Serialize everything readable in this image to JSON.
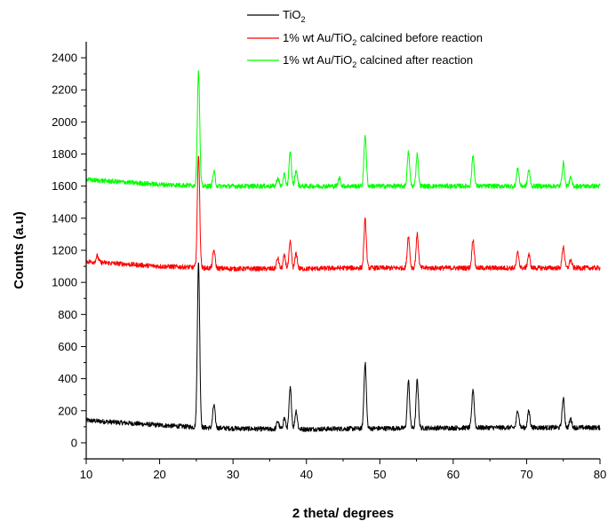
{
  "chart_data": {
    "type": "line",
    "xlabel": "2 theta/ degrees",
    "ylabel": "Counts (a.u)",
    "xlim": [
      10,
      80
    ],
    "ylim": [
      -100,
      2500
    ],
    "xticks": [
      10,
      20,
      30,
      40,
      50,
      60,
      70,
      80
    ],
    "yticks": [
      0,
      200,
      400,
      600,
      800,
      1000,
      1200,
      1400,
      1600,
      1800,
      2000,
      2200,
      2400
    ],
    "grid": false,
    "legend_position": "top-center",
    "series": [
      {
        "name": "TiO2",
        "legend": {
          "pre": "TiO",
          "sub": "2",
          "post": ""
        },
        "color": "#000000",
        "baseline": [
          [
            10,
            140
          ],
          [
            15,
            125
          ],
          [
            20,
            110
          ],
          [
            24,
            100
          ],
          [
            26,
            95
          ],
          [
            30,
            90
          ],
          [
            35,
            85
          ],
          [
            40,
            85
          ],
          [
            45,
            88
          ],
          [
            50,
            90
          ],
          [
            55,
            92
          ],
          [
            60,
            93
          ],
          [
            65,
            95
          ],
          [
            70,
            95
          ],
          [
            75,
            95
          ],
          [
            80,
            95
          ]
        ],
        "peaks": [
          [
            25.3,
            1120
          ],
          [
            27.4,
            235
          ],
          [
            36.1,
            135
          ],
          [
            37.0,
            155
          ],
          [
            37.8,
            340
          ],
          [
            38.6,
            200
          ],
          [
            48.0,
            500
          ],
          [
            53.9,
            385
          ],
          [
            55.1,
            390
          ],
          [
            62.7,
            335
          ],
          [
            68.8,
            205
          ],
          [
            70.3,
            200
          ],
          [
            75.0,
            275
          ],
          [
            76.0,
            150
          ]
        ]
      },
      {
        "name": "1% wt Au/TiO2 calcined before reaction",
        "legend": {
          "pre": "1% wt Au/TiO",
          "sub": "2",
          "post": " calcined before reaction"
        },
        "color": "#ff0000",
        "baseline": [
          [
            10,
            1130
          ],
          [
            15,
            1115
          ],
          [
            20,
            1100
          ],
          [
            24,
            1095
          ],
          [
            26,
            1090
          ],
          [
            30,
            1085
          ],
          [
            35,
            1085
          ],
          [
            40,
            1085
          ],
          [
            45,
            1090
          ],
          [
            50,
            1090
          ],
          [
            55,
            1090
          ],
          [
            60,
            1090
          ],
          [
            65,
            1090
          ],
          [
            70,
            1090
          ],
          [
            75,
            1090
          ],
          [
            80,
            1090
          ]
        ],
        "peaks": [
          [
            11.5,
            1165
          ],
          [
            25.3,
            1800
          ],
          [
            27.4,
            1200
          ],
          [
            36.1,
            1150
          ],
          [
            37.0,
            1165
          ],
          [
            37.8,
            1250
          ],
          [
            38.6,
            1180
          ],
          [
            48.0,
            1390
          ],
          [
            53.9,
            1290
          ],
          [
            55.1,
            1300
          ],
          [
            62.7,
            1270
          ],
          [
            68.8,
            1185
          ],
          [
            70.3,
            1175
          ],
          [
            75.0,
            1225
          ],
          [
            76.0,
            1140
          ]
        ]
      },
      {
        "name": "1% wt Au/TiO2 calcined after reaction",
        "legend": {
          "pre": "1% wt Au/TiO",
          "sub": "2",
          "post": " calcined after reaction"
        },
        "color": "#00ff00",
        "baseline": [
          [
            10,
            1640
          ],
          [
            15,
            1625
          ],
          [
            20,
            1610
          ],
          [
            24,
            1605
          ],
          [
            26,
            1600
          ],
          [
            30,
            1600
          ],
          [
            35,
            1600
          ],
          [
            40,
            1600
          ],
          [
            45,
            1600
          ],
          [
            50,
            1600
          ],
          [
            55,
            1600
          ],
          [
            60,
            1600
          ],
          [
            65,
            1600
          ],
          [
            70,
            1600
          ],
          [
            75,
            1600
          ],
          [
            80,
            1600
          ]
        ],
        "peaks": [
          [
            25.3,
            2320
          ],
          [
            27.4,
            1690
          ],
          [
            36.1,
            1650
          ],
          [
            37.0,
            1670
          ],
          [
            37.8,
            1810
          ],
          [
            38.6,
            1700
          ],
          [
            44.5,
            1650
          ],
          [
            48.0,
            1920
          ],
          [
            53.9,
            1810
          ],
          [
            55.1,
            1800
          ],
          [
            62.7,
            1790
          ],
          [
            68.8,
            1710
          ],
          [
            70.3,
            1700
          ],
          [
            75.0,
            1745
          ],
          [
            76.0,
            1650
          ]
        ]
      }
    ]
  }
}
